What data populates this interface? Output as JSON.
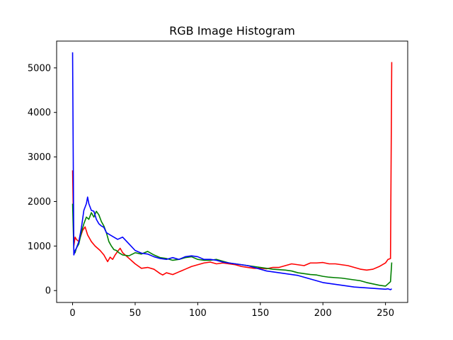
{
  "chart_data": {
    "type": "line",
    "title": "RGB Image Histogram",
    "xlabel": "",
    "ylabel": "",
    "xlim": [
      -12.75,
      267.75
    ],
    "ylim": [
      -266.75,
      5601.75
    ],
    "x_ticks": [
      0,
      50,
      100,
      150,
      200,
      250
    ],
    "y_ticks": [
      0,
      1000,
      2000,
      3000,
      4000,
      5000
    ],
    "grid": false,
    "legend": "none",
    "series": [
      {
        "color": "#ff0000",
        "x": [
          0,
          1,
          2,
          3,
          5,
          8,
          10,
          12,
          15,
          18,
          20,
          22,
          25,
          27,
          28,
          30,
          32,
          34,
          36,
          38,
          40,
          42,
          44,
          46,
          48,
          50,
          55,
          60,
          65,
          70,
          72,
          75,
          80,
          85,
          90,
          95,
          100,
          105,
          110,
          115,
          120,
          125,
          130,
          135,
          140,
          145,
          150,
          155,
          160,
          165,
          170,
          175,
          180,
          185,
          190,
          195,
          200,
          205,
          210,
          215,
          220,
          225,
          230,
          235,
          240,
          245,
          250,
          252,
          254,
          255
        ],
        "values": [
          2700,
          1000,
          1200,
          1150,
          1100,
          1350,
          1430,
          1250,
          1100,
          1000,
          950,
          900,
          800,
          700,
          650,
          750,
          700,
          800,
          880,
          950,
          850,
          800,
          750,
          700,
          650,
          600,
          500,
          520,
          480,
          380,
          350,
          400,
          360,
          420,
          480,
          540,
          580,
          620,
          640,
          600,
          620,
          600,
          580,
          540,
          520,
          500,
          500,
          490,
          520,
          520,
          560,
          600,
          580,
          560,
          620,
          620,
          630,
          600,
          600,
          580,
          560,
          520,
          480,
          460,
          480,
          540,
          620,
          700,
          720,
          5130
        ]
      },
      {
        "color": "#008000",
        "x": [
          0,
          1,
          2,
          3,
          5,
          7,
          9,
          11,
          13,
          15,
          17,
          19,
          21,
          23,
          25,
          27,
          29,
          31,
          33,
          35,
          37,
          40,
          45,
          50,
          55,
          60,
          65,
          70,
          75,
          80,
          85,
          90,
          95,
          100,
          105,
          110,
          115,
          120,
          125,
          130,
          135,
          140,
          145,
          150,
          155,
          160,
          165,
          170,
          175,
          180,
          185,
          190,
          195,
          200,
          205,
          210,
          215,
          220,
          225,
          230,
          235,
          240,
          245,
          250,
          252,
          254,
          255
        ],
        "values": [
          1950,
          900,
          850,
          950,
          1050,
          1300,
          1500,
          1650,
          1600,
          1750,
          1650,
          1780,
          1700,
          1550,
          1450,
          1300,
          1100,
          1000,
          920,
          900,
          850,
          800,
          780,
          850,
          820,
          880,
          800,
          740,
          720,
          680,
          700,
          740,
          760,
          700,
          680,
          680,
          700,
          660,
          620,
          600,
          580,
          560,
          540,
          520,
          500,
          480,
          470,
          460,
          440,
          400,
          380,
          360,
          350,
          320,
          300,
          290,
          280,
          260,
          240,
          220,
          180,
          150,
          120,
          100,
          150,
          200,
          630
        ]
      },
      {
        "color": "#0000ff",
        "x": [
          0,
          1,
          2,
          3,
          5,
          7,
          9,
          11,
          12,
          13,
          15,
          17,
          19,
          21,
          23,
          25,
          27,
          30,
          33,
          36,
          40,
          45,
          50,
          55,
          60,
          65,
          70,
          75,
          80,
          85,
          90,
          95,
          100,
          105,
          110,
          115,
          120,
          125,
          130,
          135,
          140,
          145,
          150,
          155,
          160,
          165,
          170,
          175,
          180,
          185,
          190,
          195,
          200,
          205,
          210,
          215,
          220,
          225,
          230,
          235,
          240,
          245,
          250,
          252,
          254,
          255
        ],
        "values": [
          5350,
          800,
          900,
          950,
          1100,
          1400,
          1800,
          1950,
          2100,
          1950,
          1800,
          1780,
          1600,
          1500,
          1450,
          1420,
          1300,
          1250,
          1200,
          1150,
          1200,
          1050,
          900,
          840,
          820,
          760,
          720,
          700,
          740,
          700,
          760,
          780,
          760,
          700,
          700,
          680,
          640,
          620,
          600,
          580,
          560,
          520,
          480,
          440,
          420,
          400,
          380,
          360,
          340,
          300,
          260,
          220,
          180,
          160,
          140,
          120,
          100,
          80,
          70,
          60,
          50,
          40,
          30,
          40,
          20,
          40
        ]
      }
    ]
  }
}
